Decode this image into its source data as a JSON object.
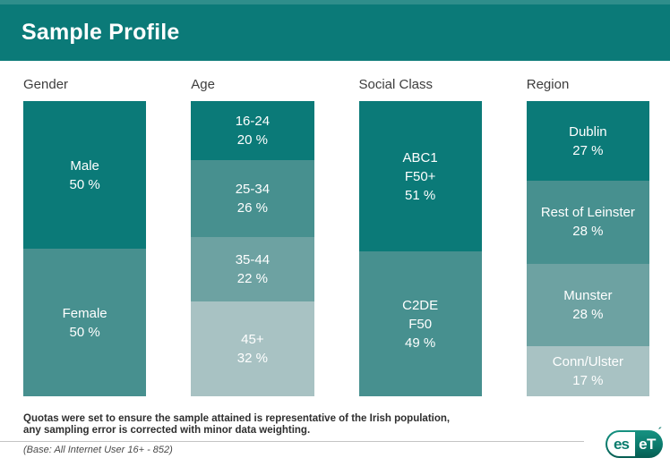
{
  "title": "Sample Profile",
  "colors": {
    "header": "#0b7a78",
    "header_strip": "#2f8e8b",
    "palette": [
      "#0b7a78",
      "#47908f",
      "#6da2a2",
      "#a8c2c3"
    ],
    "bar_text": "#ffffff",
    "column_label_text": "#3d3d3d"
  },
  "chart_data": {
    "type": "bar",
    "subtype": "stacked-percentage-columns",
    "title": "Sample Profile",
    "legend_position": "none",
    "grid": false,
    "value_range": [
      0,
      100
    ],
    "groups": [
      {
        "label": "Gender",
        "segments": [
          {
            "name": "Male",
            "value": 50,
            "pct": "50 %"
          },
          {
            "name": "Female",
            "value": 50,
            "pct": "50 %"
          }
        ]
      },
      {
        "label": "Age",
        "segments": [
          {
            "name": "16-24",
            "value": 20,
            "pct": "20 %"
          },
          {
            "name": "25-34",
            "value": 26,
            "pct": "26 %"
          },
          {
            "name": "35-44",
            "value": 22,
            "pct": "22 %"
          },
          {
            "name": "45+",
            "value": 32,
            "pct": "32 %"
          }
        ]
      },
      {
        "label": "Social Class",
        "segments": [
          {
            "name": "ABC1\nF50+",
            "value": 51,
            "pct": "51 %"
          },
          {
            "name": "C2DE\nF50",
            "value": 49,
            "pct": "49 %"
          }
        ]
      },
      {
        "label": "Region",
        "segments": [
          {
            "name": "Dublin",
            "value": 27,
            "pct": "27 %"
          },
          {
            "name": "Rest of Leinster",
            "value": 28,
            "pct": "28 %"
          },
          {
            "name": "Munster",
            "value": 28,
            "pct": "28 %"
          },
          {
            "name": "Conn/Ulster",
            "value": 17,
            "pct": "17 %"
          }
        ]
      }
    ]
  },
  "footer": {
    "note_line1": "Quotas were set to ensure the sample attained is representative of the Irish population,",
    "note_line2": "any sampling error is corrected with minor data weighting.",
    "base": "(Base: All Internet User 16+ - 852)"
  },
  "logo": {
    "brand": "eset",
    "left_text": "es",
    "right_text": "eT",
    "tick": "´"
  }
}
